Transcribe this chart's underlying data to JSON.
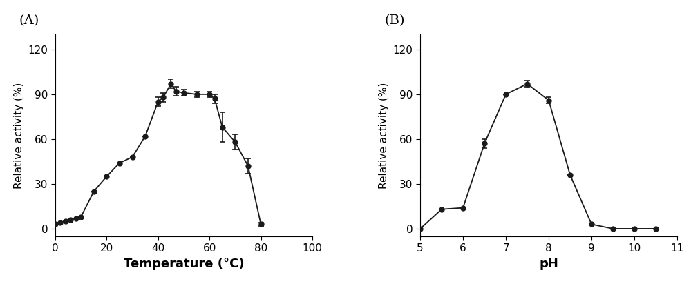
{
  "panel_A": {
    "label": "(A)",
    "x": [
      0,
      2,
      4,
      6,
      8,
      10,
      15,
      20,
      25,
      30,
      35,
      40,
      42,
      45,
      47,
      50,
      55,
      60,
      62,
      65,
      70,
      75,
      80
    ],
    "y": [
      3,
      4,
      5,
      6,
      7,
      8,
      25,
      35,
      44,
      48,
      62,
      85,
      88,
      97,
      92,
      91,
      90,
      90,
      87,
      68,
      58,
      42,
      3
    ],
    "yerr": [
      0,
      0,
      0,
      0,
      0,
      0,
      0,
      0,
      0,
      0,
      0,
      3,
      3,
      3,
      3,
      2,
      2,
      2,
      3,
      10,
      5,
      5,
      1
    ],
    "xlabel": "Temperature (°C)",
    "ylabel": "Relative activity (%)",
    "xlim": [
      0,
      100
    ],
    "ylim": [
      -5,
      130
    ],
    "xticks": [
      0,
      20,
      40,
      60,
      80,
      100
    ],
    "yticks": [
      0,
      30,
      60,
      90,
      120
    ]
  },
  "panel_B": {
    "label": "(B)",
    "x": [
      5.0,
      5.5,
      6.0,
      6.5,
      7.0,
      7.5,
      8.0,
      8.5,
      9.0,
      9.5,
      10.0,
      10.5
    ],
    "y": [
      0,
      13,
      14,
      57,
      90,
      97,
      86,
      36,
      3,
      0,
      0,
      0
    ],
    "yerr": [
      0,
      0,
      0,
      3,
      0,
      2,
      2,
      0,
      0,
      0,
      0,
      0
    ],
    "xlabel": "pH",
    "ylabel": "Relative activity (%)",
    "xlim": [
      5,
      11
    ],
    "ylim": [
      -5,
      130
    ],
    "xticks": [
      5,
      6,
      7,
      8,
      9,
      10,
      11
    ],
    "yticks": [
      0,
      30,
      60,
      90,
      120
    ]
  },
  "line_color": "#1a1a1a",
  "marker": "o",
  "marker_size": 5,
  "marker_color": "#1a1a1a",
  "line_width": 1.3,
  "xlabel_fontsize": 13,
  "ylabel_fontsize": 11,
  "tick_fontsize": 11,
  "panel_label_fontsize": 14,
  "background_color": "#ffffff",
  "capsize": 3,
  "elinewidth": 1.2
}
